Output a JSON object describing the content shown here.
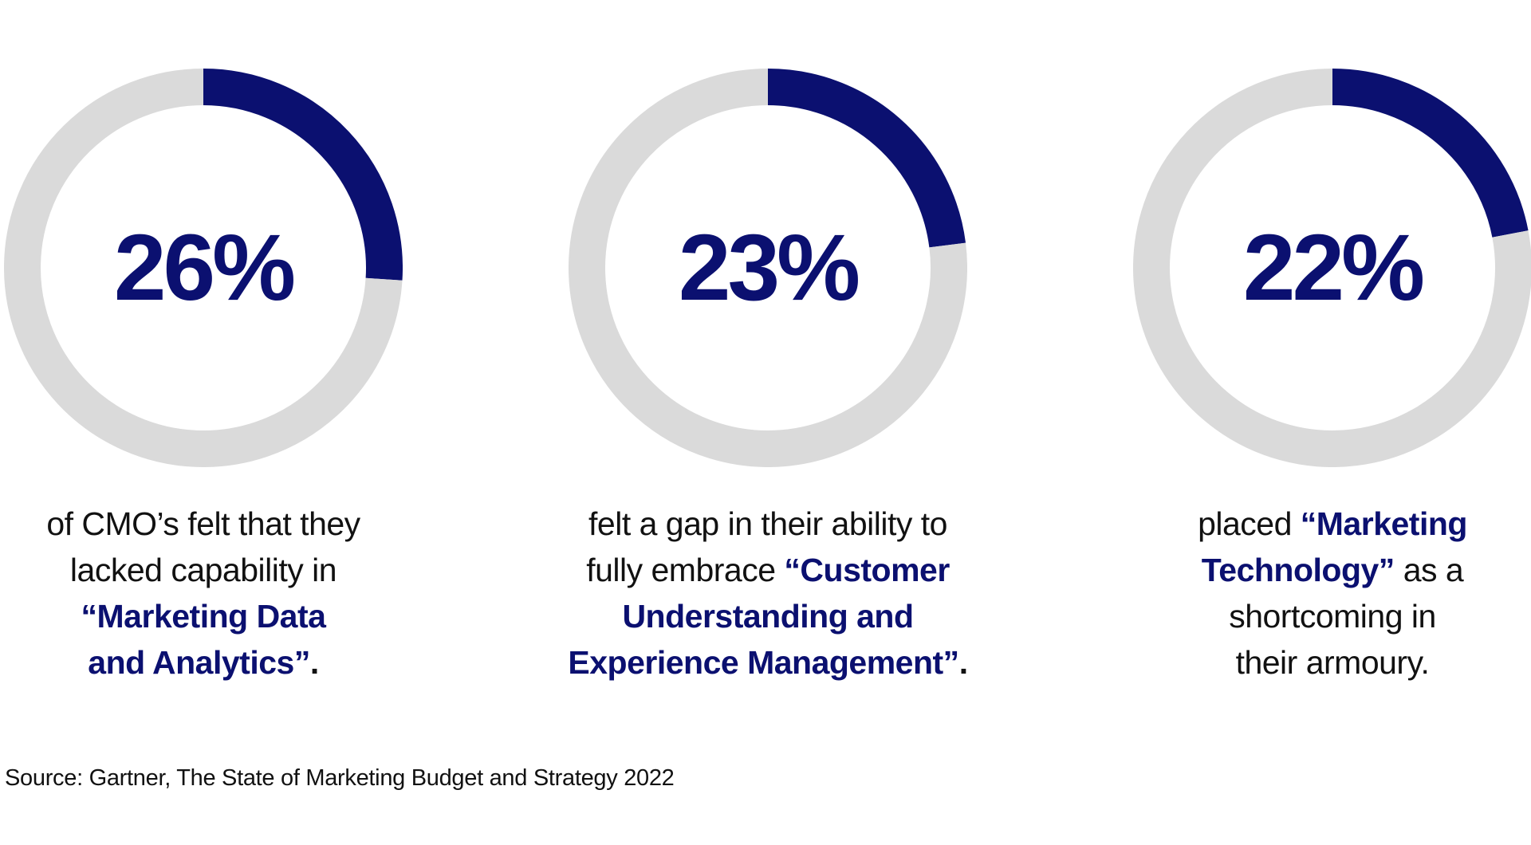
{
  "chart_data": [
    {
      "type": "pie",
      "variant": "donut",
      "value": 26,
      "value_label": "26%",
      "series": [
        {
          "name": "highlighted",
          "value": 26,
          "color": "#0b1070"
        },
        {
          "name": "remainder",
          "value": 74,
          "color": "#dadada"
        }
      ],
      "caption": {
        "plain_lines": [
          "of CMO’s felt that they",
          "lacked capability in"
        ],
        "highlight_lines": [
          "“Marketing Data",
          "and Analytics”"
        ],
        "end": "."
      }
    },
    {
      "type": "pie",
      "variant": "donut",
      "value": 23,
      "value_label": "23%",
      "series": [
        {
          "name": "highlighted",
          "value": 23,
          "color": "#0b1070"
        },
        {
          "name": "remainder",
          "value": 77,
          "color": "#dadada"
        }
      ],
      "caption": {
        "line1": "felt a gap in their ability to",
        "line2_plain": "fully embrace ",
        "line2_highlight": "“Customer",
        "line3_highlight": "Understanding and",
        "line4_highlight": "Experience Management”",
        "end": "."
      }
    },
    {
      "type": "pie",
      "variant": "donut",
      "value": 22,
      "value_label": "22%",
      "series": [
        {
          "name": "highlighted",
          "value": 22,
          "color": "#0b1070"
        },
        {
          "name": "remainder",
          "value": 78,
          "color": "#dadada"
        }
      ],
      "caption": {
        "line1_plain": "placed ",
        "line1_highlight": "“Marketing",
        "line2_highlight": "Technology”",
        "line2_plain": " as a",
        "line3": "shortcoming in",
        "line4": "their armoury."
      }
    }
  ],
  "source": "Source:  Gartner, The State of Marketing Budget and Strategy 2022"
}
